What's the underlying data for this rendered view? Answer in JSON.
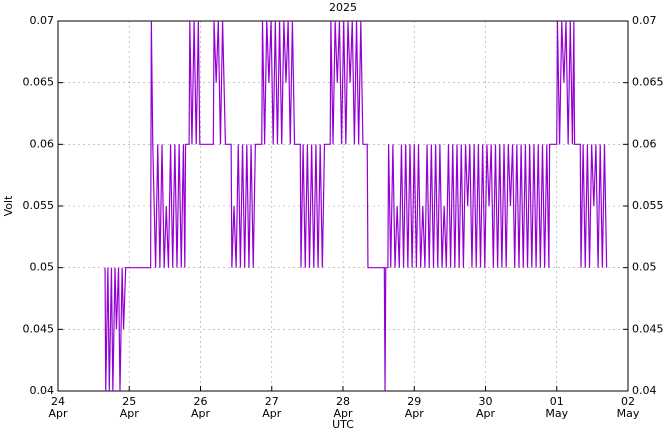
{
  "chart_data": {
    "type": "line",
    "title": "2025",
    "ylabel": "Volt",
    "xlabel": "UTC",
    "color": "#9400d3",
    "grid": true,
    "mirror_y_axis": true,
    "xlim": [
      0,
      8
    ],
    "ylim": [
      0.04,
      0.07
    ],
    "xticks": [
      {
        "value": 0,
        "label": "24 Apr"
      },
      {
        "value": 1,
        "label": "25 Apr"
      },
      {
        "value": 2,
        "label": "26 Apr"
      },
      {
        "value": 3,
        "label": "27 Apr"
      },
      {
        "value": 4,
        "label": "28 Apr"
      },
      {
        "value": 5,
        "label": "29 Apr"
      },
      {
        "value": 6,
        "label": "30 Apr"
      },
      {
        "value": 7,
        "label": "01 May"
      },
      {
        "value": 8,
        "label": "02 May"
      }
    ],
    "yticks": [
      0.04,
      0.045,
      0.05,
      0.055,
      0.06,
      0.065,
      0.07
    ],
    "x": [
      0.66,
      0.67,
      0.7,
      0.72,
      0.75,
      0.77,
      0.8,
      0.82,
      0.85,
      0.87,
      0.9,
      0.92,
      0.95,
      1.3,
      1.31,
      1.33,
      1.37,
      1.4,
      1.43,
      1.46,
      1.49,
      1.52,
      1.55,
      1.58,
      1.61,
      1.64,
      1.67,
      1.7,
      1.73,
      1.76,
      1.78,
      1.79,
      1.84,
      1.85,
      1.88,
      1.91,
      1.94,
      1.97,
      1.99,
      2.18,
      2.19,
      2.22,
      2.25,
      2.28,
      2.31,
      2.35,
      2.43,
      2.44,
      2.47,
      2.5,
      2.53,
      2.56,
      2.59,
      2.62,
      2.65,
      2.68,
      2.71,
      2.74,
      2.77,
      2.79,
      2.86,
      2.87,
      2.9,
      2.93,
      2.96,
      2.99,
      3.02,
      3.05,
      3.08,
      3.11,
      3.14,
      3.17,
      3.2,
      3.23,
      3.26,
      3.29,
      3.32,
      3.34,
      3.4,
      3.41,
      3.44,
      3.47,
      3.5,
      3.53,
      3.56,
      3.59,
      3.62,
      3.65,
      3.68,
      3.71,
      3.74,
      3.76,
      3.82,
      3.83,
      3.86,
      3.89,
      3.92,
      3.95,
      3.98,
      4.01,
      4.04,
      4.07,
      4.1,
      4.13,
      4.16,
      4.19,
      4.22,
      4.25,
      4.28,
      4.34,
      4.35,
      4.58,
      4.59,
      4.6,
      4.63,
      4.64,
      4.67,
      4.7,
      4.73,
      4.76,
      4.79,
      4.82,
      4.85,
      4.88,
      4.91,
      4.94,
      4.97,
      5,
      5.03,
      5.06,
      5.09,
      5.12,
      5.15,
      5.18,
      5.21,
      5.24,
      5.27,
      5.3,
      5.33,
      5.36,
      5.39,
      5.42,
      5.45,
      5.48,
      5.51,
      5.54,
      5.57,
      5.6,
      5.63,
      5.66,
      5.69,
      5.72,
      5.75,
      5.78,
      5.81,
      5.84,
      5.87,
      5.9,
      5.93,
      5.96,
      5.99,
      6.02,
      6.05,
      6.08,
      6.11,
      6.14,
      6.17,
      6.2,
      6.23,
      6.26,
      6.29,
      6.32,
      6.35,
      6.38,
      6.41,
      6.44,
      6.47,
      6.5,
      6.53,
      6.56,
      6.59,
      6.62,
      6.65,
      6.68,
      6.71,
      6.74,
      6.77,
      6.8,
      6.83,
      6.86,
      6.89,
      6.9,
      7,
      7.01,
      7.04,
      7.07,
      7.1,
      7.13,
      7.16,
      7.19,
      7.22,
      7.24,
      7.25,
      7.33,
      7.34,
      7.37,
      7.4,
      7.43,
      7.46,
      7.49,
      7.52,
      7.55,
      7.58,
      7.61,
      7.64,
      7.67,
      7.7
    ],
    "values": [
      0.05,
      0.04,
      0.05,
      0.04,
      0.05,
      0.04,
      0.05,
      0.045,
      0.05,
      0.04,
      0.05,
      0.045,
      0.05,
      0.05,
      0.07,
      0.06,
      0.05,
      0.06,
      0.05,
      0.06,
      0.05,
      0.055,
      0.05,
      0.06,
      0.05,
      0.06,
      0.05,
      0.06,
      0.05,
      0.06,
      0.05,
      0.06,
      0.06,
      0.07,
      0.06,
      0.07,
      0.06,
      0.07,
      0.06,
      0.06,
      0.07,
      0.065,
      0.07,
      0.06,
      0.07,
      0.06,
      0.06,
      0.05,
      0.055,
      0.05,
      0.06,
      0.05,
      0.06,
      0.05,
      0.06,
      0.05,
      0.06,
      0.05,
      0.06,
      0.06,
      0.06,
      0.07,
      0.06,
      0.07,
      0.065,
      0.07,
      0.06,
      0.07,
      0.06,
      0.07,
      0.06,
      0.07,
      0.065,
      0.07,
      0.06,
      0.07,
      0.06,
      0.06,
      0.06,
      0.05,
      0.06,
      0.05,
      0.06,
      0.05,
      0.06,
      0.05,
      0.06,
      0.05,
      0.06,
      0.05,
      0.06,
      0.06,
      0.06,
      0.07,
      0.06,
      0.07,
      0.065,
      0.07,
      0.06,
      0.07,
      0.06,
      0.07,
      0.065,
      0.07,
      0.06,
      0.07,
      0.06,
      0.07,
      0.06,
      0.06,
      0.05,
      0.05,
      0.04,
      0.05,
      0.05,
      0.06,
      0.05,
      0.06,
      0.05,
      0.055,
      0.05,
      0.06,
      0.05,
      0.06,
      0.05,
      0.06,
      0.05,
      0.06,
      0.05,
      0.06,
      0.05,
      0.055,
      0.05,
      0.06,
      0.05,
      0.06,
      0.05,
      0.06,
      0.05,
      0.06,
      0.05,
      0.055,
      0.05,
      0.06,
      0.05,
      0.06,
      0.05,
      0.06,
      0.05,
      0.06,
      0.05,
      0.06,
      0.055,
      0.06,
      0.05,
      0.06,
      0.05,
      0.06,
      0.05,
      0.06,
      0.05,
      0.06,
      0.055,
      0.06,
      0.05,
      0.06,
      0.05,
      0.06,
      0.05,
      0.06,
      0.05,
      0.06,
      0.055,
      0.06,
      0.05,
      0.06,
      0.05,
      0.06,
      0.05,
      0.06,
      0.05,
      0.06,
      0.05,
      0.06,
      0.05,
      0.06,
      0.05,
      0.06,
      0.05,
      0.06,
      0.05,
      0.06,
      0.06,
      0.07,
      0.06,
      0.07,
      0.065,
      0.07,
      0.06,
      0.07,
      0.06,
      0.07,
      0.06,
      0.06,
      0.05,
      0.06,
      0.05,
      0.06,
      0.05,
      0.06,
      0.055,
      0.06,
      0.05,
      0.06,
      0.05,
      0.06,
      0.05
    ]
  }
}
